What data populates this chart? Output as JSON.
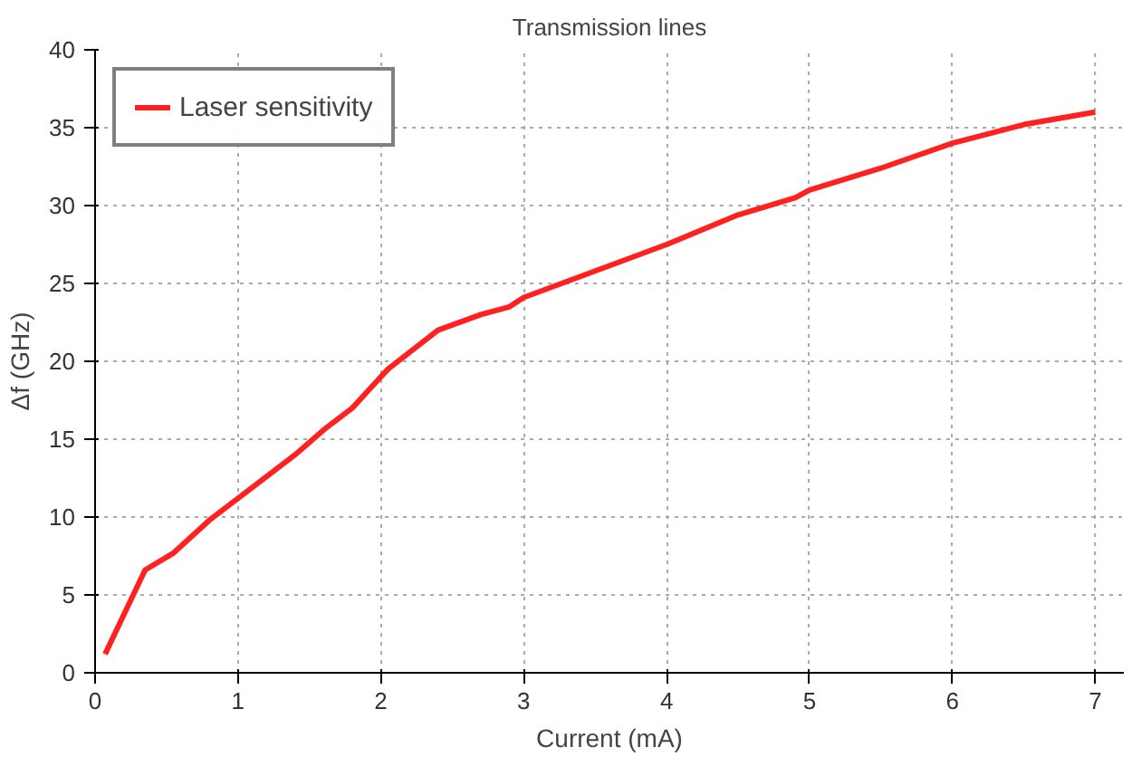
{
  "chart_data": {
    "type": "line",
    "title": "Transmission lines",
    "xlabel": "Current (mA)",
    "ylabel": "Δf (GHz)",
    "xlim": [
      0,
      7.2
    ],
    "ylim": [
      0,
      40
    ],
    "xticks": [
      0,
      1,
      2,
      3,
      4,
      5,
      6,
      7
    ],
    "yticks": [
      0,
      5,
      10,
      15,
      20,
      25,
      30,
      35,
      40
    ],
    "grid": true,
    "legend": "top left",
    "line_style": "solid",
    "series": [
      {
        "name": "Laser sensitivity",
        "color": "#ff2020",
        "x": [
          0.07,
          0.35,
          0.55,
          0.8,
          1.0,
          1.4,
          1.6,
          1.8,
          1.95,
          2.05,
          2.4,
          2.7,
          2.9,
          3.0,
          3.5,
          4.0,
          4.5,
          4.9,
          5.0,
          5.5,
          6.0,
          6.5,
          7.0
        ],
        "values": [
          1.2,
          6.6,
          7.7,
          9.8,
          11.2,
          14.0,
          15.6,
          17.0,
          18.5,
          19.5,
          22.0,
          23.0,
          23.5,
          24.1,
          25.8,
          27.5,
          29.4,
          30.5,
          31.0,
          32.4,
          34.0,
          35.2,
          36.0
        ]
      }
    ]
  }
}
